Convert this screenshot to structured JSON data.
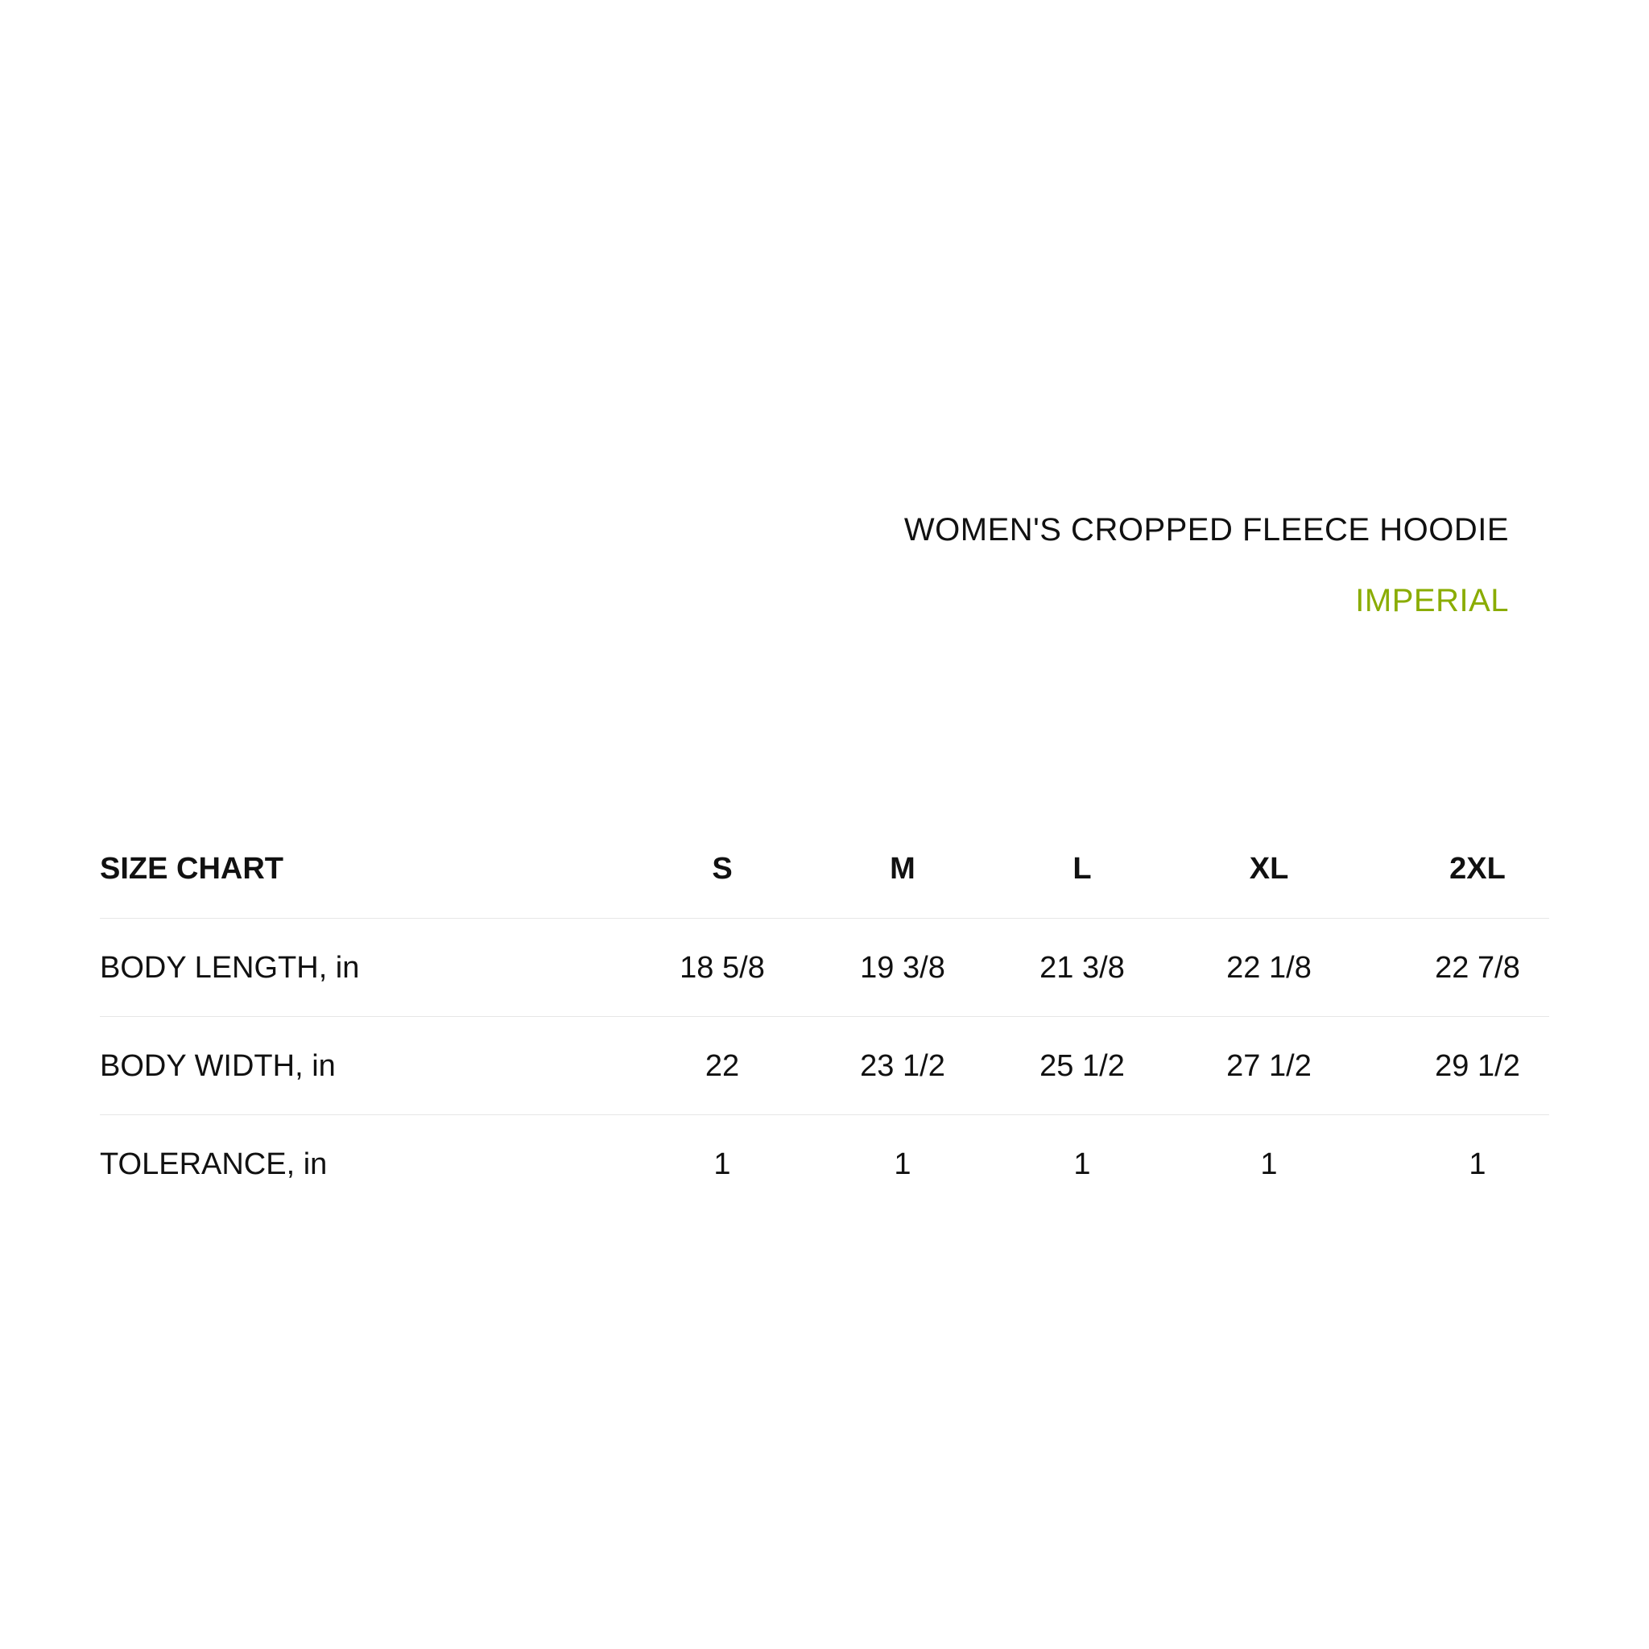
{
  "header": {
    "title": "WOMEN'S CROPPED FLEECE HOODIE",
    "unit_system": "IMPERIAL",
    "accent_color": "#8aac00"
  },
  "table": {
    "corner_label": "SIZE CHART",
    "sizes": [
      "S",
      "M",
      "L",
      "XL",
      "2XL"
    ],
    "rows": [
      {
        "label": "BODY LENGTH, in",
        "values": [
          "18 5/8",
          "19 3/8",
          "21 3/8",
          "22 1/8",
          "22 7/8"
        ]
      },
      {
        "label": "BODY WIDTH, in",
        "values": [
          "22",
          "23 1/2",
          "25 1/2",
          "27 1/2",
          "29 1/2"
        ]
      },
      {
        "label": "TOLERANCE, in",
        "values": [
          "1",
          "1",
          "1",
          "1",
          "1"
        ]
      }
    ]
  }
}
